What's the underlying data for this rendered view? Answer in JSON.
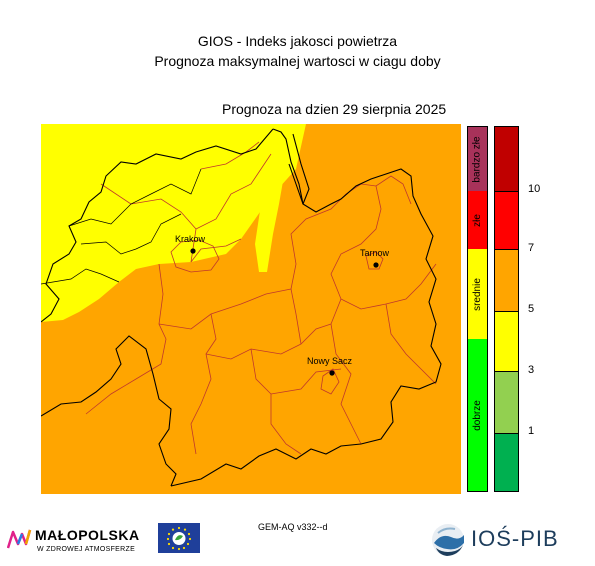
{
  "header": {
    "title_line1": "GIOS - Indeks jakosci powietrza",
    "title_line2": "Prognoza maksymalnej wartosci w ciagu doby",
    "forecast_date": "Prognoza na dzien  29 sierpnia 2025"
  },
  "map": {
    "region": "Malopolska",
    "background_color": "#ffa500",
    "zones": [
      {
        "name": "north-western yellow zone",
        "value_range": "3-5",
        "color": "#ffff00"
      }
    ],
    "cities": [
      {
        "name": "Krakow"
      },
      {
        "name": "Tarnow"
      },
      {
        "name": "Nowy Sacz"
      }
    ],
    "border_color_internal": "#c0392b",
    "border_color_outer": "#000000"
  },
  "legend": {
    "categories": [
      {
        "label": "bardzo złe",
        "color": "#a8325a"
      },
      {
        "label": "złe",
        "color": "#ff0000"
      },
      {
        "label": "srednie",
        "color": "#ffff00"
      },
      {
        "label": "dobrze",
        "color": "#00ff00"
      }
    ],
    "scale": [
      {
        "color": "#c00000"
      },
      {
        "color": "#ff0000"
      },
      {
        "color": "#ffa500"
      },
      {
        "color": "#ffff00"
      },
      {
        "color": "#92d050"
      },
      {
        "color": "#00b050"
      }
    ],
    "ticks": [
      "10",
      "7",
      "5",
      "3",
      "1"
    ]
  },
  "footer": {
    "model_label": "GEM-AQ v332--d",
    "logo_malopolska_name": "MAŁOPOLSKA",
    "logo_malopolska_sub": "W ZDROWEJ ATMOSFERZE",
    "logo_ios_name": "IOŚ-PIB"
  }
}
